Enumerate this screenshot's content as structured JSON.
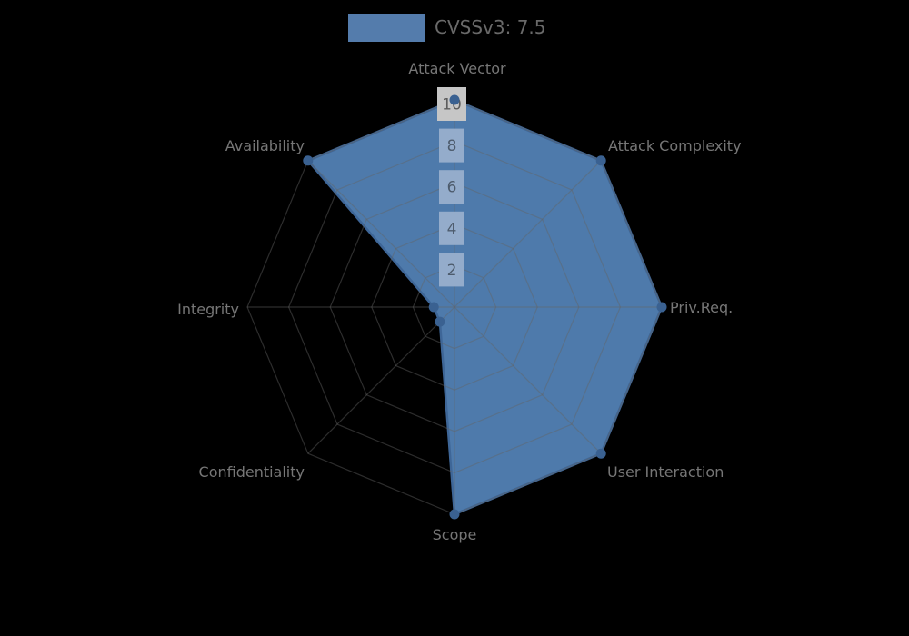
{
  "page": {
    "background": "#000000"
  },
  "legend": {
    "label": "CVSSv3: 7.5",
    "swatch_color": "#547cac"
  },
  "chart_data": {
    "type": "radar",
    "title": "",
    "categories": [
      "Attack Vector",
      "Attack Complexity",
      "Priv.Req.",
      "User Interaction",
      "Scope",
      "Confidentiality",
      "Integrity",
      "Availability"
    ],
    "series": [
      {
        "name": "CVSSv3: 7.5",
        "values": [
          10,
          10,
          10,
          10,
          10,
          1,
          1,
          10
        ]
      }
    ],
    "axis_min": 0,
    "axis_max": 10,
    "ticks": [
      2,
      4,
      6,
      8,
      10
    ],
    "grid": "polygon-web",
    "legend_position": "top",
    "colors": {
      "fill": "#4e7aab",
      "stroke": "#3e6697",
      "point": "#3a6191",
      "grid_line": "rgba(100,100,100,0.45)",
      "axis_label": "#767676",
      "tick_text_inner": "#4d5b6c",
      "tick_text_outer": "#5c5c5c",
      "tick_backdrop_inner": "#94accb",
      "tick_backdrop_outer": "#c6c6c6"
    }
  }
}
